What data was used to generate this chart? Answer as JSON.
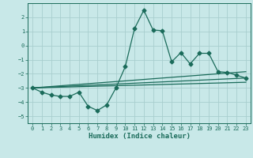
{
  "xlabel": "Humidex (Indice chaleur)",
  "background_color": "#c8e8e8",
  "grid_color": "#a8cece",
  "line_color": "#1a6b5a",
  "xlim": [
    -0.5,
    23.5
  ],
  "ylim": [
    -5.5,
    3.0
  ],
  "yticks": [
    -5,
    -4,
    -3,
    -2,
    -1,
    0,
    1,
    2
  ],
  "xticks": [
    0,
    1,
    2,
    3,
    4,
    5,
    6,
    7,
    8,
    9,
    10,
    11,
    12,
    13,
    14,
    15,
    16,
    17,
    18,
    19,
    20,
    21,
    22,
    23
  ],
  "line1_x": [
    0,
    1,
    2,
    3,
    4,
    5,
    6,
    7,
    8,
    9,
    10,
    11,
    12,
    13,
    14,
    15,
    16,
    17,
    18,
    19,
    20,
    21,
    22,
    23
  ],
  "line1_y": [
    -3.0,
    -3.3,
    -3.5,
    -3.6,
    -3.6,
    -3.3,
    -4.3,
    -4.6,
    -4.2,
    -3.0,
    -1.5,
    1.2,
    2.5,
    1.1,
    1.05,
    -1.15,
    -0.5,
    -1.3,
    -0.55,
    -0.55,
    -1.85,
    -1.9,
    -2.1,
    -2.3
  ],
  "line2_x": [
    0,
    23
  ],
  "line2_y": [
    -3.0,
    -1.85
  ],
  "line3_x": [
    0,
    23
  ],
  "line3_y": [
    -3.0,
    -2.3
  ],
  "line4_x": [
    0,
    23
  ],
  "line4_y": [
    -3.0,
    -2.6
  ]
}
